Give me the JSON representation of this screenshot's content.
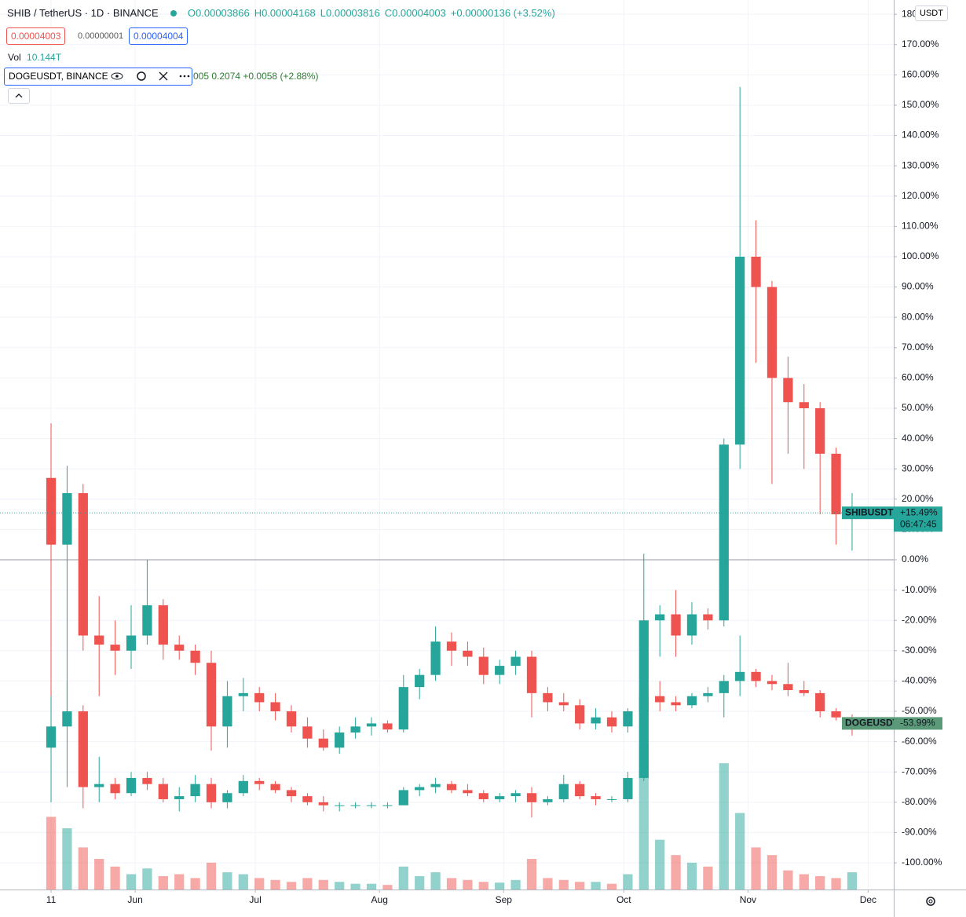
{
  "chart_data": {
    "type": "candlestick",
    "symbol": "SHIB / TetherUS · 1D · BINANCE",
    "ohlc_text": [
      "O0.00003866",
      "H0.00004168",
      "L0.00003816",
      "C0.00004003",
      "+0.00000136 (+3.52%)"
    ],
    "price_boxes": [
      "0.00004003",
      "0.00000001",
      "0.00004004"
    ],
    "vol_label": "Vol",
    "vol_value": "10.144T",
    "compare_symbol": "DOGEUSDT, BINANCE",
    "compare_text": "005  0.2074  +0.0058 (+2.88%)",
    "currency": "USDT",
    "xlim": [
      -12.75,
      210.4
    ],
    "xticks": [
      {
        "value": 0,
        "label": "11"
      },
      {
        "value": 21,
        "label": "Jun"
      },
      {
        "value": 51,
        "label": "Jul"
      },
      {
        "value": 82,
        "label": "Aug"
      },
      {
        "value": 113,
        "label": "Sep"
      },
      {
        "value": 143,
        "label": "Oct"
      },
      {
        "value": 174,
        "label": "Nov"
      },
      {
        "value": 204,
        "label": "Dec"
      }
    ],
    "ylim": [
      -108.8,
      184.7
    ],
    "yticks": [
      180,
      {
        "value": 170,
        "label": "170.00%"
      },
      {
        "value": 160,
        "label": "160.00%"
      },
      {
        "value": 150,
        "label": "150.00%"
      },
      {
        "value": 140,
        "label": "140.00%"
      },
      {
        "value": 130,
        "label": "130.00%"
      },
      {
        "value": 120,
        "label": "120.00%"
      },
      {
        "value": 110,
        "label": "110.00%"
      },
      {
        "value": 100,
        "label": "100.00%"
      },
      {
        "value": 90,
        "label": "90.00%"
      },
      {
        "value": 80,
        "label": "80.00%"
      },
      {
        "value": 70,
        "label": "70.00%"
      },
      {
        "value": 60,
        "label": "60.00%"
      },
      {
        "value": 50,
        "label": "50.00%"
      },
      {
        "value": 40,
        "label": "40.00%"
      },
      {
        "value": 30,
        "label": "30.00%"
      },
      {
        "value": 20,
        "label": "20.00%"
      },
      {
        "value": 10,
        "label": "10.00%"
      },
      {
        "value": 0,
        "label": "0.00%"
      },
      {
        "value": -10,
        "label": "-10.00%"
      },
      {
        "value": -20,
        "label": "-20.00%"
      },
      {
        "value": -30,
        "label": "-30.00%"
      },
      {
        "value": -40,
        "label": "-40.00%"
      },
      {
        "value": -50,
        "label": "-50.00%"
      },
      {
        "value": -60,
        "label": "-60.00%"
      },
      {
        "value": -70,
        "label": "-70.00%"
      },
      {
        "value": -80,
        "label": "-80.00%"
      },
      {
        "value": -90,
        "label": "-90.00%"
      },
      {
        "value": -100,
        "label": "-100.00%"
      }
    ],
    "grid": true,
    "baseline": 0,
    "up_color": "#26a69a",
    "down_color": "#ef5350",
    "x": [
      0,
      4,
      8,
      12,
      16,
      20,
      24,
      28,
      32,
      36,
      40,
      44,
      48,
      52,
      56,
      60,
      64,
      68,
      72,
      76,
      80,
      84,
      88,
      92,
      96,
      100,
      104,
      108,
      112,
      116,
      120,
      124,
      128,
      132,
      136,
      140,
      144,
      148,
      152,
      156,
      160,
      164,
      168,
      172,
      176,
      180,
      184,
      188,
      192,
      196,
      200
    ],
    "series": [
      {
        "name": "SHIBUSDT",
        "open": [
          27,
          5,
          22,
          -25,
          -28,
          -30,
          -25,
          -15,
          -28,
          -30,
          -34,
          -55,
          -45,
          -44,
          -47,
          -50,
          -55,
          -59,
          -62,
          -57,
          -55,
          -54,
          -56,
          -42,
          -38,
          -27,
          -30,
          -32,
          -38,
          -35,
          -32,
          -44,
          -47,
          -48,
          -54,
          -52,
          -55,
          -50,
          -20,
          -18,
          -25,
          -18,
          -20,
          38,
          100,
          90,
          60,
          52,
          50,
          35,
          15
        ],
        "high": [
          45,
          31,
          25,
          -12,
          -20,
          -15,
          0,
          -13,
          -25,
          -28,
          -30,
          -40,
          -39,
          -42,
          -44,
          -48,
          -52,
          -56,
          -55,
          -52,
          -52,
          -53,
          -38,
          -36,
          -22,
          -24,
          -27,
          -29,
          -33,
          -30,
          -30,
          -42,
          -44,
          -46,
          -49,
          -50,
          -49,
          2,
          -15,
          -10,
          -14,
          -16,
          40,
          156,
          112,
          92,
          67,
          58,
          52,
          37,
          22
        ],
        "low": [
          -58,
          -50,
          -30,
          -45,
          -38,
          -36,
          -28,
          -33,
          -33,
          -38,
          -63,
          -62,
          -50,
          -50,
          -53,
          -57,
          -62,
          -63,
          -64,
          -59,
          -58,
          -57,
          -57,
          -46,
          -40,
          -35,
          -35,
          -41,
          -41,
          -38,
          -52,
          -50,
          -50,
          -56,
          -56,
          -57,
          -57,
          -62,
          -32,
          -32,
          -28,
          -23,
          -22,
          30,
          65,
          25,
          35,
          30,
          15,
          5,
          3
        ],
        "close": [
          5,
          22,
          -25,
          -28,
          -30,
          -25,
          -15,
          -28,
          -30,
          -34,
          -55,
          -45,
          -44,
          -47,
          -50,
          -55,
          -59,
          -62,
          -57,
          -55,
          -54,
          -56,
          -42,
          -38,
          -27,
          -30,
          -32,
          -38,
          -35,
          -32,
          -44,
          -47,
          -48,
          -54,
          -52,
          -55,
          -50,
          -20,
          -18,
          -25,
          -18,
          -20,
          38,
          100,
          90,
          60,
          52,
          50,
          35,
          15,
          15.49
        ]
      },
      {
        "name": "DOGEUSDT",
        "open": [
          -62,
          -55,
          -50,
          -75,
          -74,
          -77,
          -72,
          -74,
          -79,
          -78,
          -74,
          -80,
          -77,
          -73,
          -74,
          -76,
          -78,
          -80,
          -81,
          -81,
          -81,
          -81,
          -81,
          -76,
          -75,
          -74,
          -76,
          -77,
          -79,
          -78,
          -77,
          -80,
          -79,
          -74,
          -78,
          -79,
          -79,
          -72,
          -45,
          -47,
          -48,
          -45,
          -44,
          -40,
          -37,
          -40,
          -41,
          -43,
          -44,
          -50,
          -52
        ],
        "high": [
          -45,
          -40,
          -48,
          -65,
          -72,
          -70,
          -70,
          -72,
          -75,
          -71,
          -72,
          -76,
          -71,
          -72,
          -73,
          -75,
          -77,
          -78,
          -80,
          -80,
          -80,
          -80,
          -75,
          -74,
          -72,
          -73,
          -74,
          -76,
          -77,
          -76,
          -75,
          -78,
          -71,
          -73,
          -77,
          -78,
          -70,
          -41,
          -40,
          -45,
          -44,
          -42,
          -38,
          -25,
          -36,
          -38,
          -34,
          -40,
          -43,
          -49,
          -51
        ],
        "low": [
          -80,
          -75,
          -82,
          -80,
          -79,
          -78,
          -76,
          -80,
          -83,
          -80,
          -82,
          -82,
          -78,
          -76,
          -77,
          -80,
          -81,
          -83,
          -83,
          -82,
          -82,
          -82,
          -81,
          -78,
          -77,
          -77,
          -78,
          -80,
          -80,
          -80,
          -85,
          -81,
          -80,
          -79,
          -81,
          -80,
          -80,
          -73,
          -50,
          -50,
          -49,
          -47,
          -52,
          -45,
          -42,
          -43,
          -45,
          -45,
          -52,
          -53,
          -58
        ],
        "close": [
          -55,
          -50,
          -75,
          -74,
          -77,
          -72,
          -74,
          -79,
          -78,
          -74,
          -80,
          -77,
          -73,
          -74,
          -76,
          -78,
          -80,
          -81,
          -81,
          -81,
          -81,
          -81,
          -76,
          -75,
          -74,
          -76,
          -77,
          -79,
          -78,
          -77,
          -80,
          -79,
          -74,
          -78,
          -79,
          -79,
          -72,
          -45,
          -47,
          -48,
          -45,
          -44,
          -40,
          -37,
          -40,
          -41,
          -43,
          -44,
          -50,
          -52,
          -54
        ]
      }
    ],
    "volume": [
      190,
      160,
      110,
      80,
      60,
      40,
      55,
      35,
      40,
      30,
      70,
      45,
      40,
      30,
      25,
      20,
      30,
      25,
      20,
      15,
      15,
      12,
      60,
      35,
      45,
      30,
      25,
      20,
      18,
      25,
      80,
      30,
      25,
      20,
      20,
      15,
      40,
      380,
      130,
      90,
      70,
      60,
      330,
      200,
      110,
      90,
      50,
      40,
      35,
      30,
      45
    ],
    "volume_lim": [
      0,
      400
    ],
    "badges": [
      {
        "name": "SHIBUSDT",
        "value": 15.49,
        "label": "+15.49%",
        "countdown": "06:47:45",
        "color": "#26a69a"
      },
      {
        "name": "DOGEUSDT",
        "value": -53.99,
        "label": "-53.99%",
        "color": "#5b9a78"
      }
    ]
  }
}
